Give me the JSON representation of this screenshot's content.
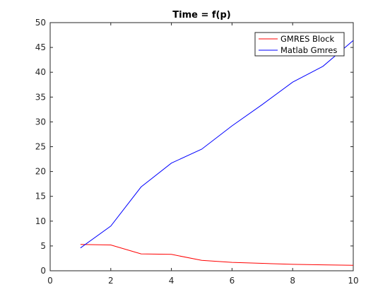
{
  "chart_data": {
    "type": "line",
    "title": "Time = f(p)",
    "xlabel": "",
    "ylabel": "",
    "xlim": [
      0,
      10
    ],
    "ylim": [
      0,
      50
    ],
    "xticks": [
      0,
      2,
      4,
      6,
      8,
      10
    ],
    "yticks": [
      0,
      5,
      10,
      15,
      20,
      25,
      30,
      35,
      40,
      45,
      50
    ],
    "grid": false,
    "legend_position": "top-right",
    "series": [
      {
        "name": "GMRES Block",
        "color": "#ff0000",
        "x": [
          1,
          2,
          3,
          4,
          5,
          6,
          7,
          8,
          9,
          10
        ],
        "y": [
          5.3,
          5.2,
          3.4,
          3.3,
          2.1,
          1.7,
          1.5,
          1.3,
          1.2,
          1.1
        ]
      },
      {
        "name": "Matlab Gmres",
        "color": "#0000ff",
        "x": [
          1,
          2,
          3,
          4,
          5,
          6,
          7,
          8,
          9,
          10
        ],
        "y": [
          4.6,
          9.0,
          16.9,
          21.7,
          24.5,
          29.2,
          33.5,
          38.0,
          41.2,
          46.4
        ]
      }
    ]
  }
}
